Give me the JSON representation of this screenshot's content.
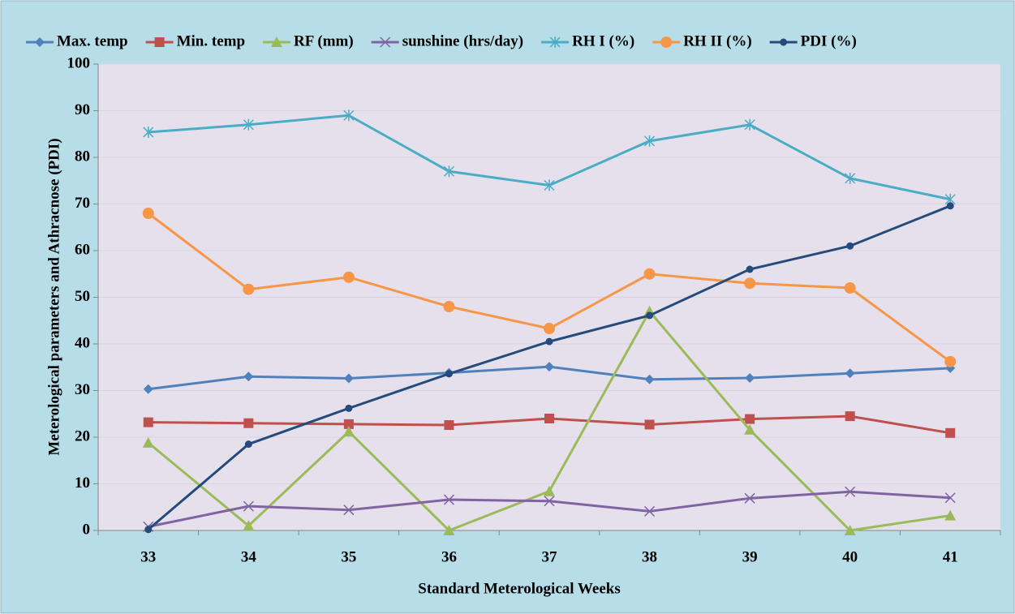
{
  "chart_data": {
    "type": "line",
    "x_label": "Standard Meterological Weeks",
    "y_label": "Meterological parameters and Athracnose (PDI)",
    "categories": [
      "33",
      "34",
      "35",
      "36",
      "37",
      "38",
      "39",
      "40",
      "41"
    ],
    "ylim": [
      0,
      100
    ],
    "yticks": [
      0,
      10,
      20,
      30,
      40,
      50,
      60,
      70,
      80,
      90,
      100
    ],
    "grid": true,
    "legend": "top",
    "series": [
      {
        "name": "Max. temp",
        "color": "#4f81bd",
        "marker": "diamond",
        "values": [
          30.3,
          33.0,
          32.6,
          33.8,
          35.1,
          32.4,
          32.7,
          33.7,
          34.8
        ]
      },
      {
        "name": "Min. temp",
        "color": "#c0504d",
        "marker": "square",
        "values": [
          23.2,
          23.0,
          22.8,
          22.6,
          24.0,
          22.7,
          23.9,
          24.5,
          20.9
        ]
      },
      {
        "name": "RF (mm)",
        "color": "#9bbb59",
        "marker": "triangle",
        "values": [
          18.8,
          1.0,
          21.2,
          0,
          8.4,
          47.0,
          21.6,
          0,
          3.2
        ]
      },
      {
        "name": "sunshine (hrs/day)",
        "color": "#8064a2",
        "marker": "x",
        "values": [
          0.8,
          5.2,
          4.4,
          6.6,
          6.3,
          4.1,
          6.9,
          8.3,
          7.0
        ]
      },
      {
        "name": "RH I (%)",
        "color": "#4bacc6",
        "marker": "star",
        "values": [
          85.4,
          87.0,
          89.0,
          77.0,
          74.0,
          83.5,
          87.0,
          75.5,
          71.0
        ]
      },
      {
        "name": "RH II (%)",
        "color": "#f79646",
        "marker": "circle",
        "values": [
          68.0,
          51.7,
          54.3,
          48.0,
          43.3,
          55.0,
          53.0,
          52.0,
          36.2
        ]
      },
      {
        "name": "PDI (%)",
        "color": "#254b7c",
        "marker": "dot",
        "values": [
          0.2,
          18.5,
          26.2,
          33.6,
          40.5,
          46.1,
          56.0,
          61.0,
          69.6
        ]
      }
    ]
  }
}
